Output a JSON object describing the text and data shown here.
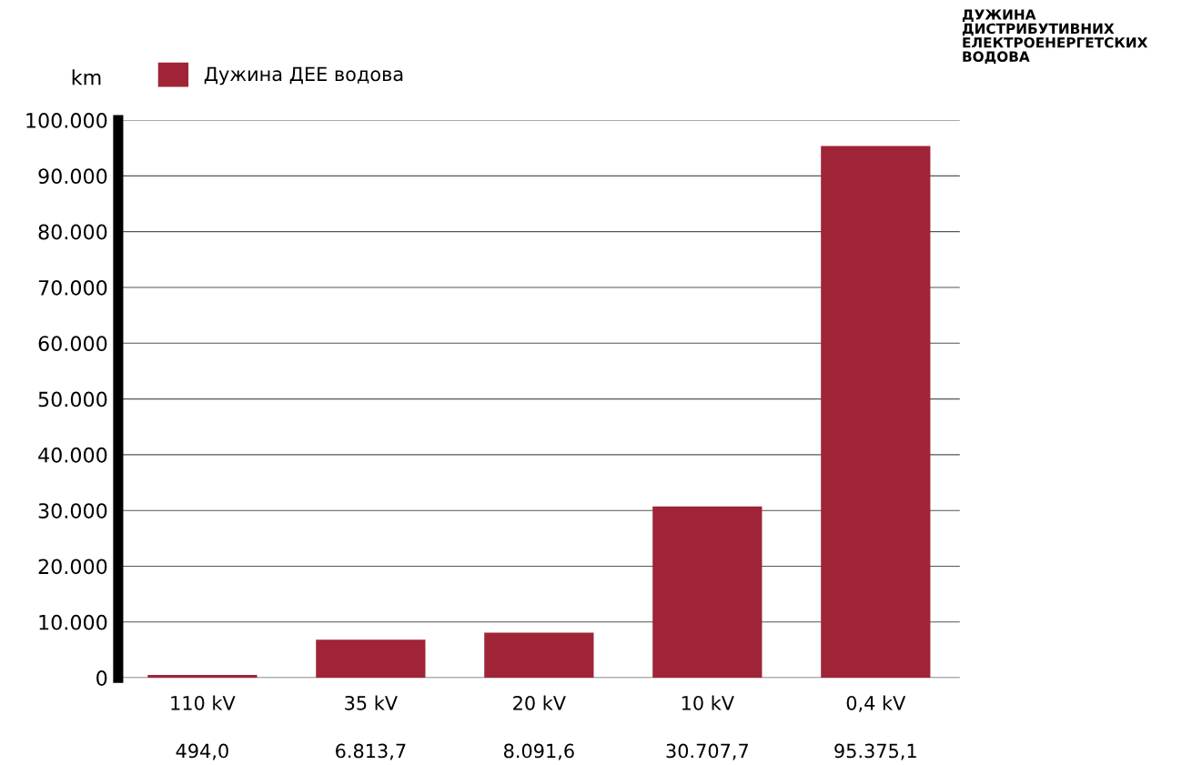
{
  "chart_data": {
    "type": "bar",
    "title": "ДУЖИНА\nДИСТРИБУТИВНИХ\nЕЛЕКТРОЕНЕРГЕТСКИХ\nВОДОВА",
    "ylabel": "km",
    "categories": [
      "110 kV",
      "35 kV",
      "20 kV",
      "10 kV",
      "0,4 kV"
    ],
    "series": [
      {
        "name": "Дужина ДЕЕ водова",
        "color": "#a02437",
        "values": [
          494.0,
          6813.7,
          8091.6,
          30707.7,
          95375.1
        ]
      }
    ],
    "value_labels": [
      "494,0",
      "6.813,7",
      "8.091,6",
      "30.707,7",
      "95.375,1"
    ],
    "ylim": [
      0,
      100000
    ],
    "yticks": [
      0,
      {
        "value": 10000,
        "label": "10.000"
      },
      {
        "value": 20000,
        "label": "20.000"
      },
      {
        "value": 30000,
        "label": "30.000"
      },
      {
        "value": 40000,
        "label": "40.000"
      },
      {
        "value": 50000,
        "label": "50.000"
      },
      {
        "value": 60000,
        "label": "60.000"
      },
      {
        "value": 70000,
        "label": "70.000"
      },
      {
        "value": 80000,
        "label": "80.000"
      },
      {
        "value": 90000,
        "label": "90.000"
      },
      {
        "value": 100000,
        "label": "100.000"
      }
    ],
    "grid": "y",
    "legend": "top left"
  }
}
